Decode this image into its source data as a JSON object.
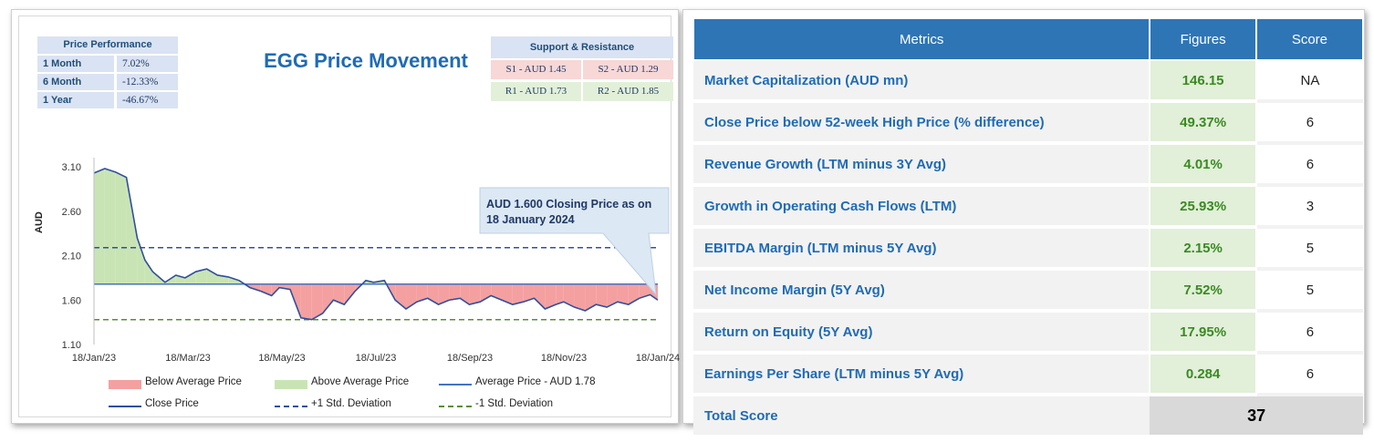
{
  "left": {
    "price_performance": {
      "title": "Price Performance",
      "rows": [
        {
          "label": "1 Month",
          "value": "7.02%"
        },
        {
          "label": "6 Month",
          "value": "-12.33%"
        },
        {
          "label": "1 Year",
          "value": "-46.67%"
        }
      ]
    },
    "support_resistance": {
      "title": "Support & Resistance",
      "s1": "S1 - AUD 1.45",
      "s2": "S2 - AUD 1.29",
      "r1": "R1 - AUD 1.73",
      "r2": "R2 - AUD 1.85"
    },
    "callout": "AUD 1.600 Closing Price as on 18 January 2024",
    "legend": {
      "below": "Below Average Price",
      "above": "Above Average Price",
      "avg": "Average Price - AUD 1.78",
      "close": "Close Price",
      "plus_sd": "+1 Std. Deviation",
      "minus_sd": "-1 Std. Deviation"
    }
  },
  "chart_data": {
    "type": "line",
    "title": "EGG Price Movement",
    "ylabel": "AUD",
    "xlabel": "",
    "ylim": [
      1.1,
      3.1
    ],
    "y_ticks": [
      "1.10",
      "1.60",
      "2.10",
      "2.60",
      "3.10"
    ],
    "x_ticks": [
      "18/Jan/23",
      "18/Mar/23",
      "18/May/23",
      "18/Jul/23",
      "18/Sep/23",
      "18/Nov/23",
      "18/Jan/24"
    ],
    "average": 1.78,
    "plus_sd": 2.19,
    "minus_sd": 1.38,
    "series": [
      {
        "name": "Close Price",
        "x": [
          "2023-01-18",
          "2023-01-25",
          "2023-02-01",
          "2023-02-08",
          "2023-02-15",
          "2023-02-20",
          "2023-02-25",
          "2023-03-05",
          "2023-03-12",
          "2023-03-18",
          "2023-03-25",
          "2023-04-01",
          "2023-04-08",
          "2023-04-15",
          "2023-04-22",
          "2023-04-29",
          "2023-05-06",
          "2023-05-13",
          "2023-05-18",
          "2023-05-25",
          "2023-06-01",
          "2023-06-08",
          "2023-06-15",
          "2023-06-22",
          "2023-06-29",
          "2023-07-06",
          "2023-07-13",
          "2023-07-18",
          "2023-07-25",
          "2023-08-01",
          "2023-08-08",
          "2023-08-15",
          "2023-08-22",
          "2023-08-29",
          "2023-09-05",
          "2023-09-12",
          "2023-09-18",
          "2023-09-25",
          "2023-10-02",
          "2023-10-09",
          "2023-10-16",
          "2023-10-23",
          "2023-10-30",
          "2023-11-06",
          "2023-11-13",
          "2023-11-18",
          "2023-11-25",
          "2023-12-02",
          "2023-12-09",
          "2023-12-16",
          "2023-12-23",
          "2023-12-30",
          "2024-01-06",
          "2024-01-13",
          "2024-01-18"
        ],
        "values": [
          3.03,
          3.08,
          3.04,
          2.98,
          2.3,
          2.05,
          1.92,
          1.8,
          1.88,
          1.85,
          1.92,
          1.95,
          1.88,
          1.86,
          1.82,
          1.74,
          1.7,
          1.65,
          1.74,
          1.72,
          1.4,
          1.38,
          1.45,
          1.6,
          1.55,
          1.7,
          1.82,
          1.8,
          1.82,
          1.6,
          1.5,
          1.58,
          1.62,
          1.55,
          1.6,
          1.62,
          1.55,
          1.58,
          1.65,
          1.6,
          1.55,
          1.58,
          1.62,
          1.5,
          1.55,
          1.58,
          1.52,
          1.48,
          1.55,
          1.52,
          1.58,
          1.55,
          1.62,
          1.66,
          1.6
        ]
      }
    ]
  },
  "right": {
    "headers": [
      "Metrics",
      "Figures",
      "Score"
    ],
    "rows": [
      {
        "metric": "Market Capitalization (AUD mn)",
        "figure": "146.15",
        "score": "NA"
      },
      {
        "metric": "Close Price below 52-week High Price (% difference)",
        "figure": "49.37%",
        "score": "6"
      },
      {
        "metric": "Revenue Growth (LTM minus 3Y Avg)",
        "figure": "4.01%",
        "score": "6"
      },
      {
        "metric": "Growth in Operating Cash Flows (LTM)",
        "figure": "25.93%",
        "score": "3"
      },
      {
        "metric": "EBITDA Margin (LTM minus 5Y Avg)",
        "figure": "2.15%",
        "score": "5"
      },
      {
        "metric": "Net Income Margin (5Y Avg)",
        "figure": "7.52%",
        "score": "5"
      },
      {
        "metric": "Return on Equity (5Y Avg)",
        "figure": "17.95%",
        "score": "6"
      },
      {
        "metric": "Earnings Per Share (LTM minus 5Y Avg)",
        "figure": "0.284",
        "score": "6"
      }
    ],
    "total_label": "Total Score",
    "total_value": "37"
  }
}
